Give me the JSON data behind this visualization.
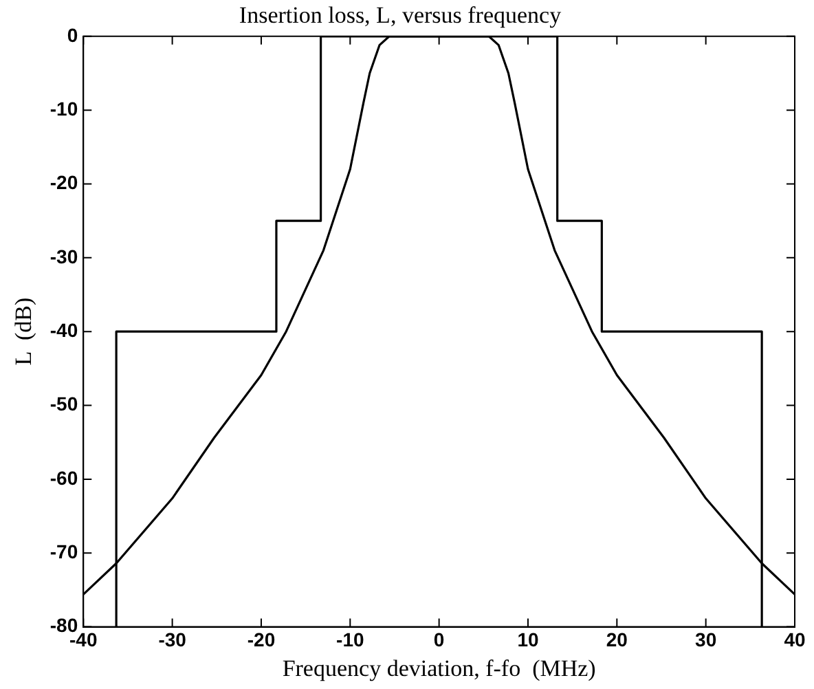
{
  "chart_data": {
    "type": "line",
    "title": "Insertion loss, L, versus frequency",
    "xlabel": "Frequency deviation, f-fo  (MHz)",
    "ylabel": "L  (dB)",
    "xlim": [
      -40,
      40
    ],
    "xticks": [
      -40,
      -30,
      -20,
      -10,
      0,
      10,
      20,
      30,
      40
    ],
    "ylim": [
      -80,
      0
    ],
    "yticks": [
      -80,
      -70,
      -60,
      -50,
      -40,
      -30,
      -20,
      -10,
      0
    ],
    "grid": false,
    "legend": false,
    "marker": "none",
    "line_style": "solid",
    "series": [
      {
        "color": "#000000",
        "x": [
          -40,
          -36.3,
          -30,
          -25.3,
          -20,
          -17.2,
          -13,
          -10,
          -8.5,
          -7.8,
          -6.7,
          -5.6,
          5.6,
          6.7,
          7.8,
          8.5,
          10,
          13,
          17.2,
          20,
          25.3,
          30,
          36.3,
          40
        ],
        "values": [
          -75.6,
          -71.4,
          -62.6,
          -54.4,
          -45.9,
          -40,
          -29,
          -18,
          -9,
          -5,
          -1.2,
          0,
          0,
          -1.2,
          -5,
          -9,
          -18,
          -29,
          -40,
          -45.9,
          -54.4,
          -62.6,
          -71.4,
          -75.6
        ]
      },
      {
        "color": "#000000",
        "x": [
          -36.3,
          -36.3,
          -18.3,
          -18.3,
          -13.3,
          -13.3,
          13.3,
          13.3,
          18.3,
          18.3,
          36.3,
          36.3
        ],
        "values": [
          -80,
          -40,
          -40,
          -25,
          -25,
          0,
          0,
          -25,
          -25,
          -40,
          -40,
          -80
        ]
      }
    ]
  }
}
